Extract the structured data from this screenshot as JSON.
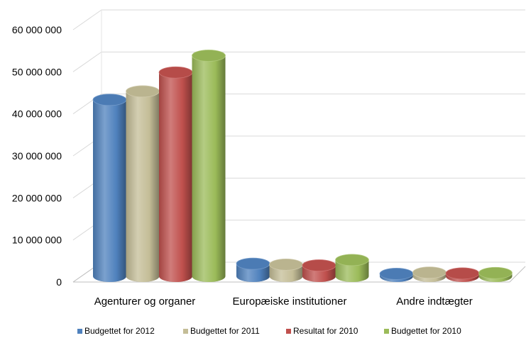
{
  "chart_data": {
    "type": "bar",
    "style": "3d-cylinder",
    "categories": [
      "Agenturer og organer",
      "Europæiske institutioner",
      "Andre indtægter"
    ],
    "series": [
      {
        "name": "Budgettet for 2012",
        "color": "#4F81BD",
        "values": [
          42000000,
          3000000,
          600000
        ]
      },
      {
        "name": "Budgettet for 2011",
        "color": "#C4BD97",
        "values": [
          44000000,
          2800000,
          900000
        ]
      },
      {
        "name": "Resultat for 2010",
        "color": "#C0504D",
        "values": [
          48500000,
          2600000,
          700000
        ]
      },
      {
        "name": "Budgettet for 2010",
        "color": "#9BBB59",
        "values": [
          52500000,
          3900000,
          800000
        ]
      }
    ],
    "yticks": [
      "0",
      "10 000 000",
      "20 000 000",
      "30 000 000",
      "40 000 000",
      "50 000 000",
      "60 000 000"
    ],
    "ylim": [
      0,
      60000000
    ],
    "grid": true,
    "legend_position": "bottom"
  }
}
